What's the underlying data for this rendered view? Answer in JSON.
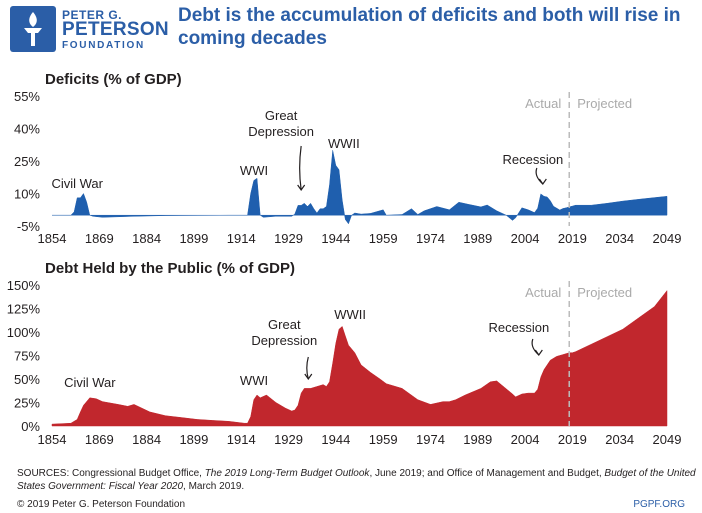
{
  "header": {
    "logo_line1": "PETER G.",
    "logo_line2": "PETERSON",
    "logo_line3": "FOUNDATION",
    "headline": "Debt is the accumulation of deficits and both will rise in coming decades"
  },
  "colors": {
    "brand_blue": "#2b5ea7",
    "deficit_fill": "#1f5fae",
    "debt_fill": "#c1272d",
    "divider": "#bbbbbb",
    "label_grey": "#aaaaaa"
  },
  "footer": {
    "sources_prefix": "SOURCES: Congressional Budget Office, ",
    "sources_title1": "The 2019 Long-Term Budget Outlook",
    "sources_mid": ", June 2019; and Office of Management and Budget, ",
    "sources_title2": "Budget of the United States Government: Fiscal Year 2020",
    "sources_suffix": ", March 2019.",
    "copyright": "© 2019 Peter G. Peterson Foundation",
    "site": "PGPF.ORG"
  },
  "chart_data": [
    {
      "type": "area",
      "title": "Deficits (% of GDP)",
      "xlabel": "",
      "ylabel": "",
      "xlim": [
        1854,
        2049
      ],
      "ylim": [
        -5,
        55
      ],
      "xticks": [
        1854,
        1869,
        1884,
        1899,
        1914,
        1929,
        1944,
        1959,
        1974,
        1989,
        2004,
        2019,
        2034,
        2049
      ],
      "yticks": [
        -5,
        10,
        25,
        40,
        55
      ],
      "ytick_labels": [
        "-5%",
        "10%",
        "25%",
        "40%",
        "55%"
      ],
      "divider_year": 2018,
      "region_labels": [
        "Actual",
        "Projected"
      ],
      "annotations": [
        {
          "text": "Civil War",
          "year": 1862
        },
        {
          "text": "WWI",
          "year": 1919
        },
        {
          "text": "Great Depression",
          "year": 1933
        },
        {
          "text": "WWII",
          "year": 1944
        },
        {
          "text": "Recession",
          "year": 2009
        }
      ],
      "x": [
        1854,
        1860,
        1861,
        1862,
        1863,
        1864,
        1865,
        1866,
        1867,
        1870,
        1880,
        1890,
        1900,
        1910,
        1916,
        1917,
        1918,
        1919,
        1920,
        1921,
        1925,
        1930,
        1931,
        1932,
        1933,
        1934,
        1935,
        1936,
        1937,
        1938,
        1939,
        1940,
        1941,
        1942,
        1943,
        1944,
        1945,
        1946,
        1947,
        1948,
        1949,
        1950,
        1952,
        1955,
        1959,
        1960,
        1965,
        1968,
        1970,
        1972,
        1975,
        1976,
        1980,
        1983,
        1986,
        1990,
        1992,
        1995,
        1998,
        2000,
        2001,
        2003,
        2005,
        2007,
        2008,
        2009,
        2010,
        2011,
        2012,
        2013,
        2015,
        2016,
        2017,
        2018,
        2019,
        2020,
        2025,
        2030,
        2035,
        2040,
        2045,
        2049
      ],
      "values": [
        0,
        0,
        1.5,
        8,
        8,
        10,
        6,
        0,
        -0.5,
        -1,
        -0.5,
        -0.2,
        -0.1,
        0,
        0,
        10,
        16,
        17,
        0,
        -1,
        -0.5,
        -0.5,
        0.5,
        4.5,
        4.5,
        5.5,
        4,
        5.5,
        3,
        1,
        3,
        3,
        4,
        14,
        30,
        23,
        21,
        7,
        -2,
        -4,
        0,
        1,
        0.5,
        0.8,
        2.5,
        0,
        0.3,
        3,
        0.3,
        2,
        3.5,
        4,
        2.5,
        6,
        5,
        3.8,
        4.7,
        2,
        0,
        -2.4,
        -1.2,
        3.4,
        2.5,
        1.2,
        3.2,
        9.8,
        8.7,
        8.4,
        6.7,
        4.1,
        2.4,
        3.1,
        3.4,
        3.8,
        4.2,
        4.6,
        4.6,
        5.5,
        6.5,
        7.3,
        8.1,
        8.7
      ]
    },
    {
      "type": "area",
      "title": "Debt Held by the Public (% of GDP)",
      "xlabel": "",
      "ylabel": "",
      "xlim": [
        1854,
        2049
      ],
      "ylim": [
        0,
        150
      ],
      "xticks": [
        1854,
        1869,
        1884,
        1899,
        1914,
        1929,
        1944,
        1959,
        1974,
        1989,
        2004,
        2019,
        2034,
        2049
      ],
      "yticks": [
        0,
        25,
        50,
        75,
        100,
        125,
        150
      ],
      "ytick_labels": [
        "0%",
        "25%",
        "50%",
        "75%",
        "100%",
        "125%",
        "150%"
      ],
      "divider_year": 2018,
      "region_labels": [
        "Actual",
        "Projected"
      ],
      "annotations": [
        {
          "text": "Civil War",
          "year": 1866
        },
        {
          "text": "WWI",
          "year": 1919
        },
        {
          "text": "Great Depression",
          "year": 1934
        },
        {
          "text": "WWII",
          "year": 1946
        },
        {
          "text": "Recession",
          "year": 2009
        }
      ],
      "x": [
        1854,
        1860,
        1862,
        1863,
        1864,
        1866,
        1868,
        1870,
        1875,
        1878,
        1880,
        1885,
        1890,
        1895,
        1900,
        1905,
        1910,
        1915,
        1916,
        1917,
        1918,
        1919,
        1920,
        1922,
        1925,
        1928,
        1930,
        1931,
        1932,
        1933,
        1934,
        1936,
        1938,
        1940,
        1941,
        1942,
        1943,
        1944,
        1945,
        1946,
        1947,
        1948,
        1950,
        1952,
        1955,
        1958,
        1960,
        1965,
        1970,
        1974,
        1978,
        1980,
        1982,
        1985,
        1990,
        1993,
        1995,
        2000,
        2001,
        2003,
        2005,
        2007,
        2008,
        2009,
        2010,
        2012,
        2014,
        2016,
        2018,
        2019,
        2020,
        2025,
        2030,
        2035,
        2040,
        2045,
        2049
      ],
      "values": [
        2,
        3,
        7,
        15,
        22,
        30,
        29,
        26,
        23,
        21,
        23,
        15,
        11,
        9,
        7,
        6,
        5,
        3,
        3,
        10,
        28,
        33,
        30,
        33,
        25,
        19,
        16,
        17,
        22,
        35,
        40,
        40,
        42,
        44,
        42,
        47,
        67,
        88,
        103,
        106,
        96,
        86,
        78,
        65,
        57,
        50,
        45,
        40,
        28,
        23,
        26,
        26,
        28,
        33,
        40,
        47,
        48,
        34,
        31,
        34,
        35,
        35,
        39,
        52,
        60,
        70,
        74,
        76,
        78,
        78,
        79,
        87,
        95,
        103,
        115,
        127,
        144
      ]
    }
  ]
}
